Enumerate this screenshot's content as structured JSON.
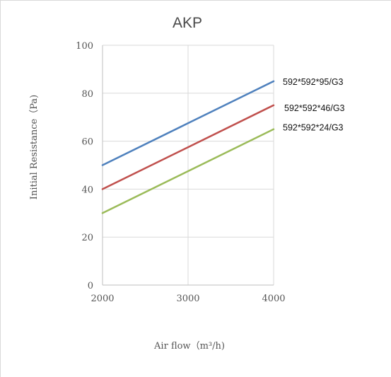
{
  "chart_data": {
    "type": "line",
    "title": "AKP",
    "xlabel": "Air flow（m³/h)",
    "ylabel": "Initial Resistance（Pa)",
    "x": [
      2000,
      3000,
      4000
    ],
    "xlim": [
      2000,
      4000
    ],
    "ylim": [
      0,
      100
    ],
    "x_ticks": [
      2000,
      3000,
      4000
    ],
    "y_ticks": [
      0,
      20,
      40,
      60,
      80,
      100
    ],
    "grid": true,
    "legend": "right-end labels",
    "series": [
      {
        "name": "592*592*95/G3",
        "values": [
          50,
          67.5,
          85
        ],
        "color": "#4f81bd"
      },
      {
        "name": "592*592*46/G3",
        "values": [
          40,
          57.5,
          75
        ],
        "color": "#c0504d"
      },
      {
        "name": "592*592*24/G3",
        "values": [
          30,
          47.5,
          65
        ],
        "color": "#9bbb59"
      }
    ]
  }
}
